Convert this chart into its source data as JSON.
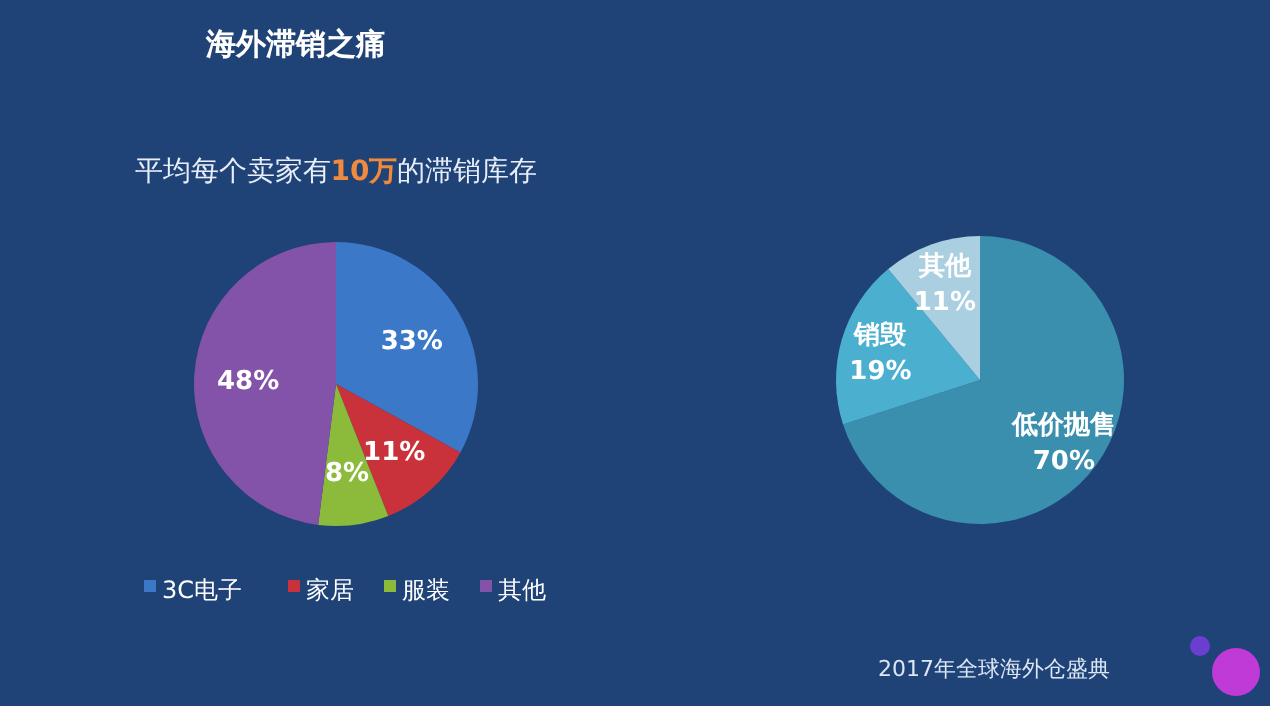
{
  "chart_data": [
    {
      "type": "pie",
      "title": "平均每个卖家有10万的滞销库存",
      "categories": [
        "3C电子",
        "家居",
        "服装",
        "其他"
      ],
      "values": [
        33,
        11,
        8,
        48
      ],
      "colors": [
        "#3b78c8",
        "#c9323a",
        "#8cbb3c",
        "#8253a8"
      ],
      "value_labels": [
        "33%",
        "11%",
        "8%",
        "48%"
      ],
      "legend": "bottom",
      "annotations": [
        "海外滞销之痛"
      ]
    },
    {
      "type": "pie",
      "categories": [
        "低价抛售",
        "销毁",
        "其他"
      ],
      "values": [
        70,
        19,
        11
      ],
      "colors": [
        "#3a8fae",
        "#4bb0cf",
        "#a9cfe0"
      ],
      "value_labels": [
        "70%",
        "19%",
        "11%"
      ],
      "legend": false,
      "annotations": [
        "2017年全球海外仓盛典"
      ]
    }
  ]
}
